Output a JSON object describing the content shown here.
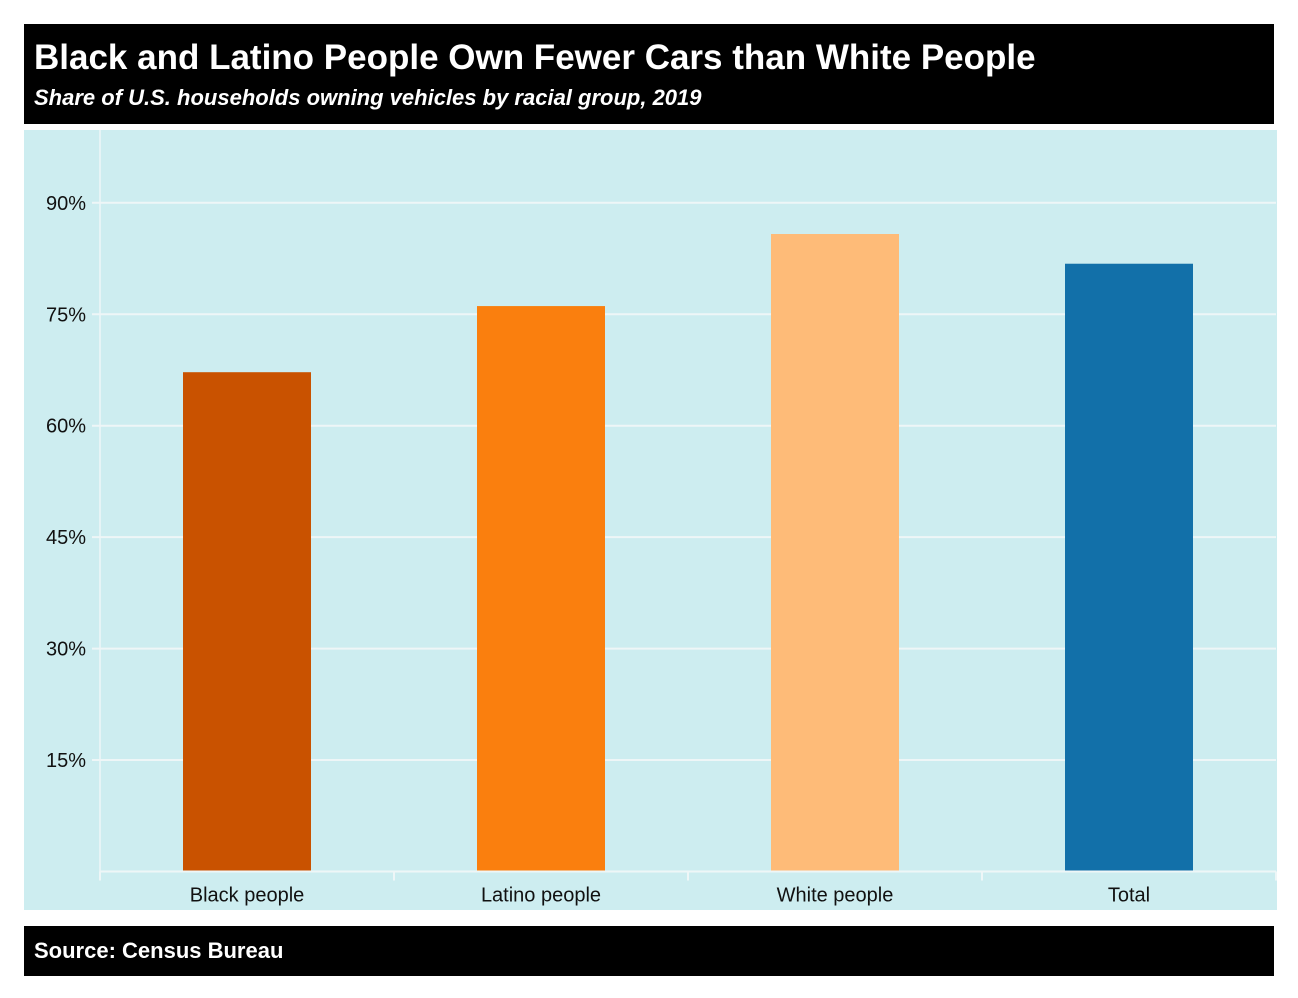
{
  "header": {
    "title": "Black and Latino People Own Fewer Cars than White People",
    "subtitle": "Share of U.S. households owning vehicles by racial group, 2019"
  },
  "footer": {
    "source": "Source: Census Bureau"
  },
  "chart_data": {
    "type": "bar",
    "title": "Black and Latino People Own Fewer Cars than White People",
    "subtitle": "Share of U.S. households owning vehicles by racial group, 2019",
    "xlabel": "",
    "ylabel": "",
    "categories": [
      "Black people",
      "Latino people",
      "White people",
      "Total"
    ],
    "values": [
      67.2,
      76.1,
      85.8,
      81.8
    ],
    "colors": [
      "#c95200",
      "#fa7f0e",
      "#febb78",
      "#1270a9"
    ],
    "ylim": [
      0,
      100
    ],
    "yticks": [
      15,
      30,
      45,
      60,
      75,
      90
    ],
    "ytick_labels": [
      "15%",
      "30%",
      "45%",
      "60%",
      "75%",
      "90%"
    ],
    "grid": true,
    "legend": "none",
    "background_color": "#cdedf0",
    "source": "Source: Census Bureau"
  }
}
